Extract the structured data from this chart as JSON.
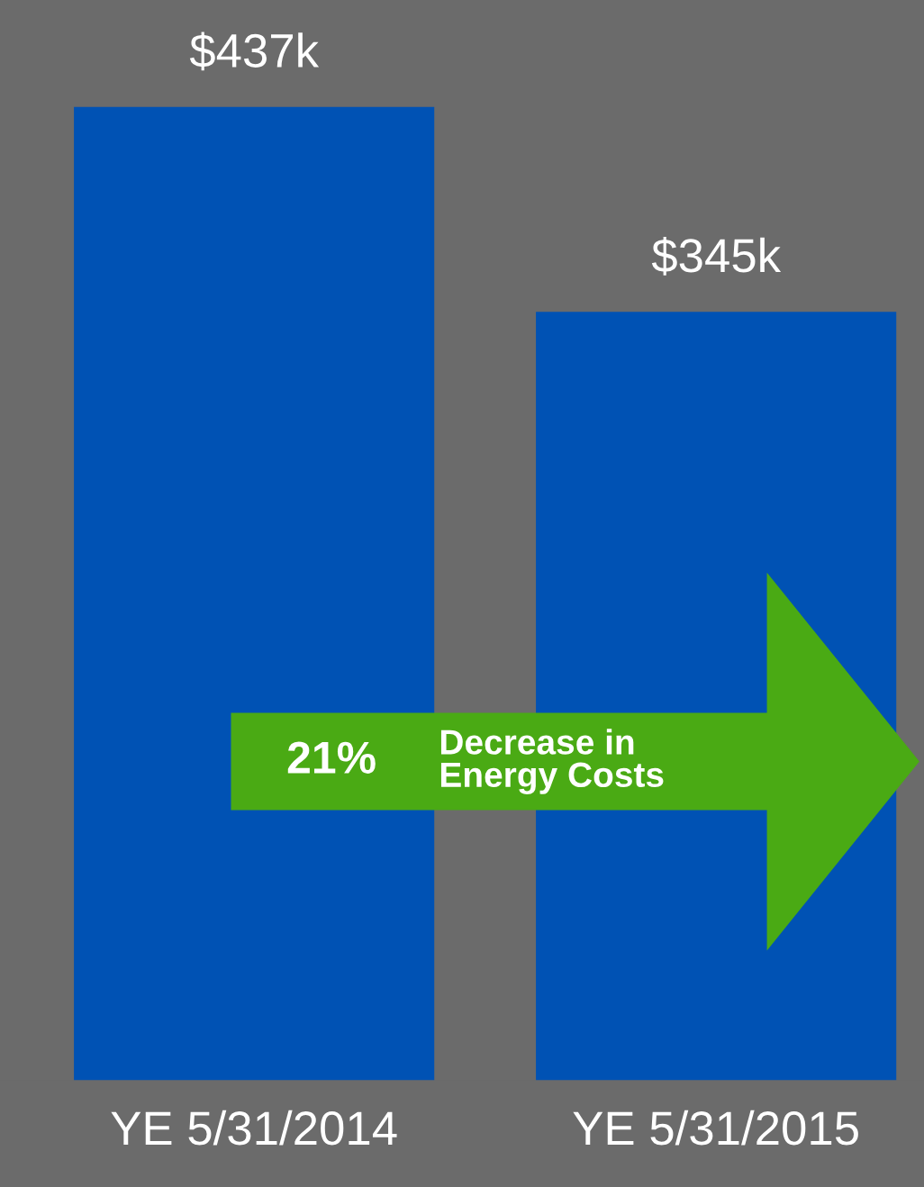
{
  "chart_data": {
    "type": "bar",
    "categories": [
      "YE 5/31/2014",
      "YE 5/31/2015"
    ],
    "values": [
      437,
      345
    ],
    "value_labels": [
      "$437k",
      "$345k"
    ],
    "color": "#0052b4",
    "annotations": [
      "21%",
      "Decrease in\nEnergy Costs"
    ],
    "grid": false,
    "legend": false
  }
}
